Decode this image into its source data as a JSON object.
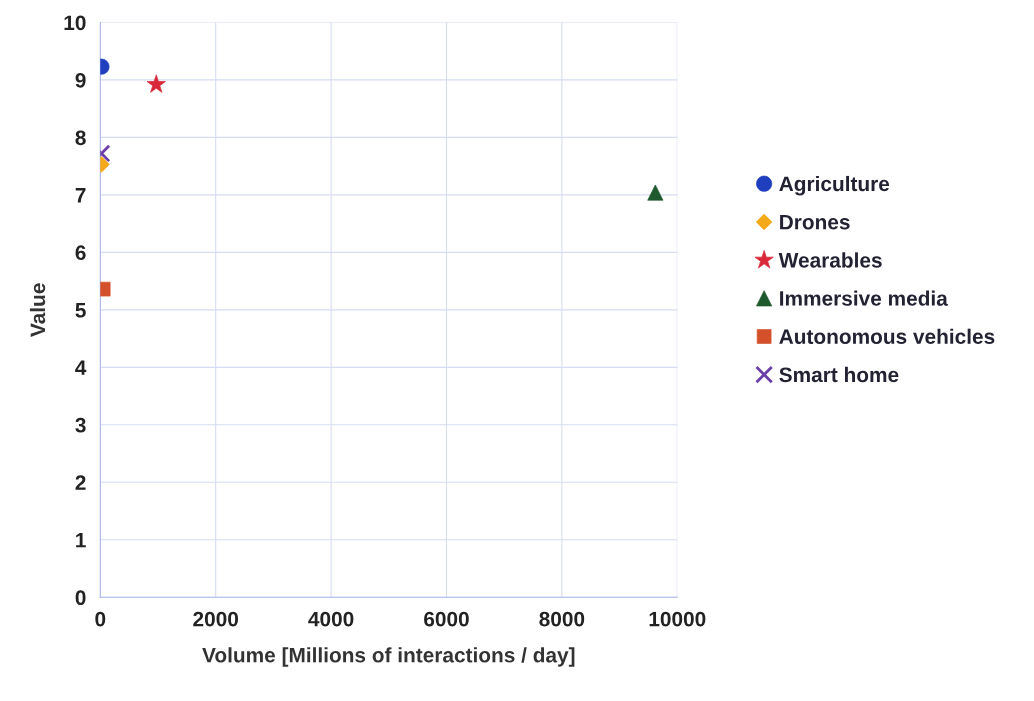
{
  "chart_data": {
    "type": "scatter",
    "xlabel": "Volume [Millions of interactions / day]",
    "ylabel": "Value",
    "xlim": [
      0,
      10000
    ],
    "xticks": [
      0,
      2000,
      4000,
      6000,
      8000,
      10000
    ],
    "ylim": [
      0,
      10
    ],
    "yticks": [
      0,
      1,
      2,
      3,
      4,
      5,
      6,
      7,
      8,
      9,
      10
    ],
    "grid": true,
    "legend": "right",
    "series": [
      {
        "name": "Agriculture",
        "color": "#1f3fbf",
        "marker": "circle",
        "x": [
          20
        ],
        "values": [
          9.23
        ]
      },
      {
        "name": "Drones",
        "color": "#f5a818",
        "marker": "diamond",
        "x": [
          20
        ],
        "values": [
          7.53
        ]
      },
      {
        "name": "Wearables",
        "color": "#d9283a",
        "marker": "star",
        "x": [
          970
        ],
        "values": [
          8.92
        ]
      },
      {
        "name": "Immersive media",
        "color": "#1f5a2e",
        "marker": "triangle",
        "x": [
          9620
        ],
        "values": [
          7.04
        ]
      },
      {
        "name": "Autonomous vehicles",
        "color": "#d4502a",
        "marker": "square",
        "x": [
          50
        ],
        "values": [
          5.36
        ]
      },
      {
        "name": "Smart home",
        "color": "#6a3fa8",
        "marker": "cross",
        "x": [
          20
        ],
        "values": [
          7.72
        ]
      }
    ]
  }
}
